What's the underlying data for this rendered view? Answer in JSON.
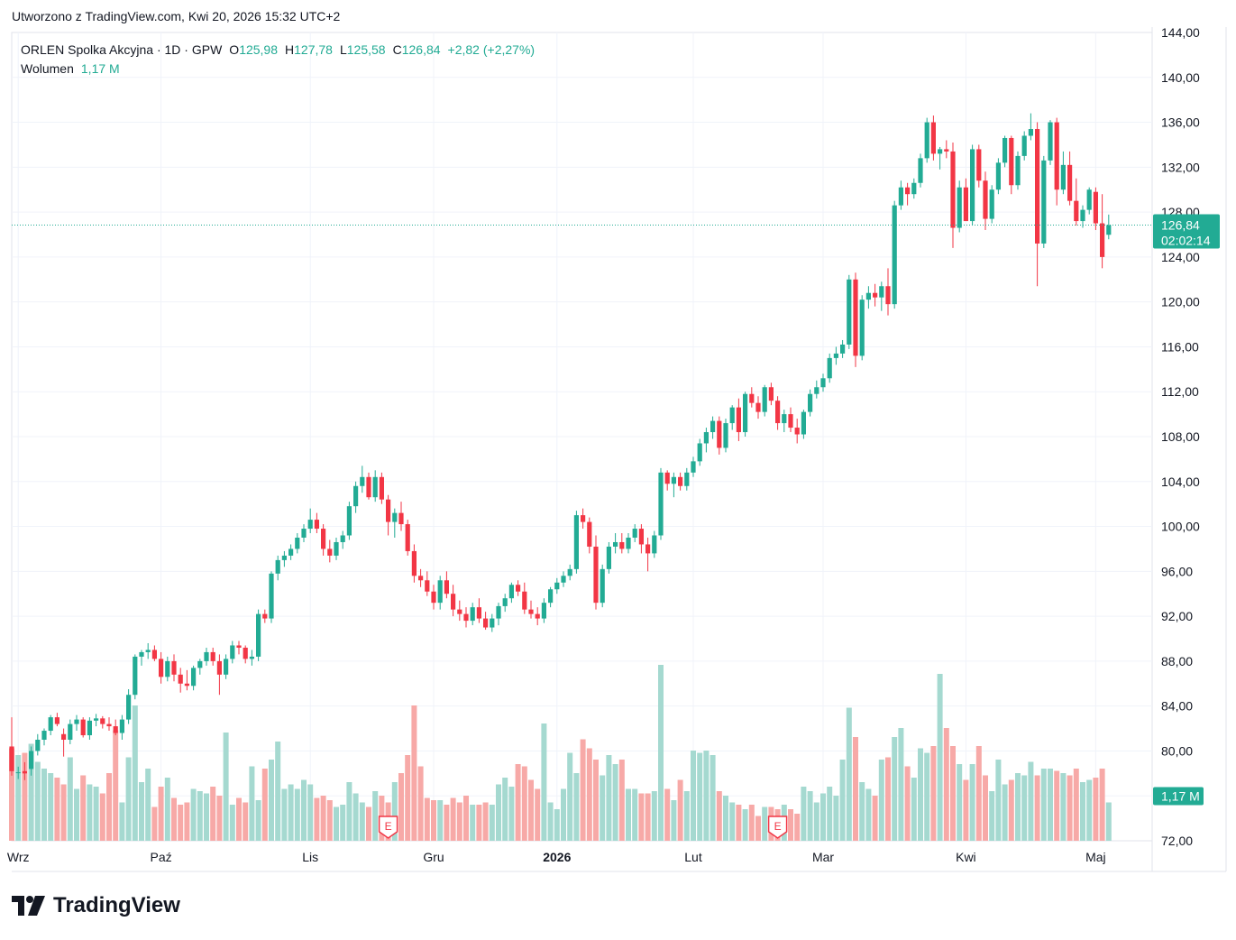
{
  "header": {
    "created_text": "Utworzono z TradingView.com, Kwi 20, 2026 15:32 UTC+2"
  },
  "legend": {
    "symbol": "ORLEN Spolka Akcyjna · 1D · GPW",
    "open_label": "O",
    "open": "125,98",
    "high_label": "H",
    "high": "127,78",
    "low_label": "L",
    "low": "125,58",
    "close_label": "C",
    "close": "126,84",
    "change": "+2,82 (+2,27%)",
    "volume_label": "Wolumen",
    "volume": "1,17 M"
  },
  "price_tag": {
    "price": "126,84",
    "countdown": "02:02:14"
  },
  "volume_tag": "1,17 M",
  "earnings_marker": "E",
  "brand": "TradingView",
  "colors": {
    "up": "#22ab94",
    "down": "#f23645",
    "up_vol": "#a5d9d0",
    "down_vol": "#f7a9a7",
    "grid": "#f0f3fa",
    "axis_text": "#131722"
  },
  "chart_data": {
    "type": "candlestick",
    "ylim": [
      72,
      144
    ],
    "y_ticks": [
      "144,00",
      "140,00",
      "136,00",
      "132,00",
      "128,00",
      "124,00",
      "120,00",
      "116,00",
      "112,00",
      "108,00",
      "104,00",
      "100,00",
      "96,00",
      "92,00",
      "88,00",
      "84,00",
      "80,00",
      "76,00",
      "72,00"
    ],
    "x_ticks": [
      {
        "label": "Wrz",
        "index": 1
      },
      {
        "label": "Paź",
        "index": 23
      },
      {
        "label": "Lis",
        "index": 46
      },
      {
        "label": "Gru",
        "index": 65
      },
      {
        "label": "2026",
        "index": 84,
        "bold": true
      },
      {
        "label": "Lut",
        "index": 105
      },
      {
        "label": "Mar",
        "index": 125
      },
      {
        "label": "Kwi",
        "index": 147
      },
      {
        "label": "Maj",
        "index": 167
      }
    ],
    "earnings_indices": [
      58,
      118
    ],
    "last_price": 126.84,
    "candles": [
      [
        80.4,
        83.0,
        77.8,
        78.2,
        0.41
      ],
      [
        78.1,
        78.6,
        77.5,
        78.1,
        0.38
      ],
      [
        78.2,
        79.0,
        77.4,
        78.0,
        0.39
      ],
      [
        78.4,
        80.4,
        77.8,
        80.0,
        0.43
      ],
      [
        80.0,
        81.5,
        79.6,
        81.0,
        0.35
      ],
      [
        81.0,
        82.0,
        80.5,
        81.8,
        0.32
      ],
      [
        81.8,
        83.2,
        81.4,
        83.0,
        0.3
      ],
      [
        83.0,
        83.4,
        82.2,
        82.4,
        0.28
      ],
      [
        81.5,
        82.0,
        79.5,
        81.0,
        0.25
      ],
      [
        81.0,
        82.8,
        80.6,
        82.4,
        0.37
      ],
      [
        82.4,
        83.2,
        81.8,
        82.8,
        0.23
      ],
      [
        82.8,
        83.0,
        81.2,
        81.4,
        0.29
      ],
      [
        81.4,
        83.0,
        81.0,
        82.7,
        0.25
      ],
      [
        82.7,
        83.3,
        82.2,
        82.9,
        0.24
      ],
      [
        82.9,
        83.1,
        82.0,
        82.4,
        0.21
      ],
      [
        82.4,
        83.0,
        81.8,
        82.2,
        0.3
      ],
      [
        82.2,
        82.8,
        81.4,
        81.6,
        0.49
      ],
      [
        81.6,
        83.2,
        81.0,
        82.8,
        0.17
      ],
      [
        82.8,
        85.5,
        82.4,
        85.0,
        0.37
      ],
      [
        85.0,
        88.6,
        84.6,
        88.4,
        0.6
      ],
      [
        88.4,
        89.0,
        87.6,
        88.8,
        0.26
      ],
      [
        88.8,
        89.6,
        88.2,
        89.0,
        0.32
      ],
      [
        89.0,
        89.4,
        88.0,
        88.2,
        0.15
      ],
      [
        88.2,
        88.8,
        86.0,
        86.6,
        0.24
      ],
      [
        86.6,
        88.4,
        86.2,
        88.0,
        0.28
      ],
      [
        88.0,
        88.6,
        86.2,
        86.8,
        0.19
      ],
      [
        86.8,
        87.4,
        85.2,
        86.0,
        0.16
      ],
      [
        86.0,
        87.2,
        85.4,
        85.8,
        0.17
      ],
      [
        85.8,
        87.6,
        85.4,
        87.4,
        0.23
      ],
      [
        87.4,
        88.2,
        86.8,
        88.0,
        0.22
      ],
      [
        88.0,
        89.2,
        87.6,
        88.8,
        0.21
      ],
      [
        88.8,
        89.2,
        87.6,
        88.0,
        0.24
      ],
      [
        88.0,
        88.6,
        85.0,
        86.8,
        0.2
      ],
      [
        86.8,
        88.6,
        86.4,
        88.2,
        0.48
      ],
      [
        88.2,
        89.8,
        87.8,
        89.4,
        0.16
      ],
      [
        89.4,
        89.8,
        88.6,
        89.2,
        0.19
      ],
      [
        89.2,
        89.4,
        87.8,
        88.2,
        0.17
      ],
      [
        88.2,
        89.0,
        87.6,
        88.4,
        0.33
      ],
      [
        88.4,
        92.6,
        88.0,
        92.2,
        0.18
      ],
      [
        92.2,
        92.6,
        91.4,
        91.8,
        0.32
      ],
      [
        91.8,
        96.0,
        91.4,
        95.8,
        0.36
      ],
      [
        95.8,
        97.4,
        95.2,
        97.0,
        0.44
      ],
      [
        97.0,
        97.8,
        96.4,
        97.4,
        0.23
      ],
      [
        97.4,
        98.4,
        97.0,
        98.0,
        0.25
      ],
      [
        98.0,
        99.4,
        97.6,
        99.0,
        0.23
      ],
      [
        99.0,
        100.2,
        98.6,
        99.8,
        0.27
      ],
      [
        99.8,
        101.6,
        99.4,
        100.6,
        0.25
      ],
      [
        100.6,
        101.2,
        99.4,
        99.8,
        0.19
      ],
      [
        99.8,
        100.2,
        97.4,
        98.0,
        0.2
      ],
      [
        98.0,
        98.8,
        96.8,
        97.4,
        0.18
      ],
      [
        97.4,
        99.0,
        97.0,
        98.6,
        0.15
      ],
      [
        98.6,
        99.6,
        98.0,
        99.2,
        0.16
      ],
      [
        99.2,
        102.2,
        98.8,
        101.8,
        0.26
      ],
      [
        101.8,
        104.0,
        101.2,
        103.6,
        0.21
      ],
      [
        103.6,
        105.4,
        103.0,
        104.4,
        0.17
      ],
      [
        104.4,
        104.8,
        102.4,
        102.6,
        0.15
      ],
      [
        102.6,
        105.0,
        102.2,
        104.4,
        0.22
      ],
      [
        104.4,
        104.8,
        102.0,
        102.4,
        0.2
      ],
      [
        102.4,
        102.8,
        99.2,
        100.4,
        0.17
      ],
      [
        100.4,
        101.6,
        99.0,
        101.2,
        0.26
      ],
      [
        101.2,
        102.2,
        99.6,
        100.2,
        0.3
      ],
      [
        100.2,
        100.6,
        97.4,
        97.8,
        0.38
      ],
      [
        97.8,
        98.4,
        95.0,
        95.6,
        0.6
      ],
      [
        95.6,
        96.2,
        94.6,
        95.2,
        0.33
      ],
      [
        95.2,
        96.0,
        93.8,
        94.2,
        0.19
      ],
      [
        94.2,
        94.8,
        92.6,
        93.2,
        0.18
      ],
      [
        93.2,
        95.6,
        92.6,
        95.2,
        0.18
      ],
      [
        95.2,
        96.0,
        93.6,
        94.0,
        0.16
      ],
      [
        94.0,
        94.8,
        92.0,
        92.6,
        0.19
      ],
      [
        92.6,
        93.4,
        91.6,
        92.2,
        0.17
      ],
      [
        92.2,
        92.8,
        91.0,
        91.6,
        0.2
      ],
      [
        91.6,
        93.2,
        91.2,
        92.8,
        0.16
      ],
      [
        92.8,
        93.6,
        91.4,
        91.8,
        0.16
      ],
      [
        91.8,
        92.4,
        90.8,
        91.0,
        0.17
      ],
      [
        91.0,
        92.2,
        90.6,
        91.8,
        0.16
      ],
      [
        91.8,
        93.2,
        91.2,
        92.9,
        0.25
      ],
      [
        92.9,
        94.0,
        92.4,
        93.6,
        0.28
      ],
      [
        93.6,
        95.0,
        93.2,
        94.8,
        0.24
      ],
      [
        94.8,
        95.2,
        93.8,
        94.2,
        0.34
      ],
      [
        94.2,
        95.0,
        92.2,
        92.6,
        0.33
      ],
      [
        92.6,
        93.4,
        91.8,
        92.2,
        0.27
      ],
      [
        92.2,
        92.8,
        91.2,
        91.8,
        0.23
      ],
      [
        91.8,
        93.6,
        91.4,
        93.2,
        0.52
      ],
      [
        93.2,
        94.6,
        92.8,
        94.4,
        0.17
      ],
      [
        94.4,
        95.4,
        94.0,
        95.0,
        0.14
      ],
      [
        95.0,
        96.0,
        94.6,
        95.6,
        0.23
      ],
      [
        95.6,
        96.6,
        95.2,
        96.2,
        0.39
      ],
      [
        96.2,
        101.4,
        95.8,
        101.0,
        0.3
      ],
      [
        101.0,
        101.6,
        99.8,
        100.4,
        0.45
      ],
      [
        100.4,
        100.8,
        97.6,
        98.2,
        0.41
      ],
      [
        98.2,
        99.2,
        92.6,
        93.2,
        0.36
      ],
      [
        93.2,
        96.6,
        92.8,
        96.2,
        0.29
      ],
      [
        96.2,
        98.6,
        95.8,
        98.2,
        0.38
      ],
      [
        98.2,
        99.4,
        97.6,
        98.6,
        0.34
      ],
      [
        98.6,
        99.4,
        97.6,
        98.0,
        0.36
      ],
      [
        98.0,
        99.4,
        97.6,
        99.0,
        0.23
      ],
      [
        99.0,
        100.2,
        98.6,
        99.8,
        0.23
      ],
      [
        99.8,
        100.2,
        97.6,
        98.4,
        0.21
      ],
      [
        98.4,
        99.0,
        96.0,
        97.6,
        0.21
      ],
      [
        97.6,
        99.6,
        97.2,
        99.2,
        0.22
      ],
      [
        99.2,
        105.2,
        98.8,
        104.8,
        0.78
      ],
      [
        104.8,
        105.0,
        103.2,
        103.8,
        0.23
      ],
      [
        103.8,
        104.8,
        102.6,
        104.4,
        0.18
      ],
      [
        104.4,
        104.8,
        103.2,
        103.6,
        0.27
      ],
      [
        103.6,
        105.2,
        103.2,
        104.8,
        0.22
      ],
      [
        104.8,
        106.2,
        104.4,
        105.8,
        0.4
      ],
      [
        105.8,
        107.8,
        105.4,
        107.4,
        0.39
      ],
      [
        107.4,
        108.8,
        106.6,
        108.4,
        0.4
      ],
      [
        108.4,
        109.8,
        107.8,
        109.4,
        0.38
      ],
      [
        109.4,
        109.8,
        106.4,
        107.0,
        0.22
      ],
      [
        107.0,
        109.6,
        106.6,
        109.2,
        0.2
      ],
      [
        109.2,
        110.8,
        108.6,
        110.6,
        0.17
      ],
      [
        110.6,
        111.4,
        107.6,
        108.4,
        0.16
      ],
      [
        108.4,
        112.0,
        108.0,
        111.8,
        0.14
      ],
      [
        111.8,
        112.4,
        110.6,
        111.0,
        0.16
      ],
      [
        111.0,
        111.6,
        109.6,
        110.2,
        0.11
      ],
      [
        110.2,
        112.6,
        109.8,
        112.4,
        0.15
      ],
      [
        112.4,
        112.8,
        110.8,
        111.2,
        0.15
      ],
      [
        111.2,
        111.6,
        108.6,
        109.2,
        0.14
      ],
      [
        109.2,
        110.4,
        108.4,
        110.0,
        0.16
      ],
      [
        110.0,
        110.6,
        108.4,
        108.8,
        0.14
      ],
      [
        108.8,
        109.6,
        107.4,
        108.2,
        0.12
      ],
      [
        108.2,
        110.4,
        107.8,
        110.2,
        0.24
      ],
      [
        110.2,
        112.2,
        109.8,
        111.8,
        0.22
      ],
      [
        111.8,
        113.0,
        111.4,
        112.4,
        0.17
      ],
      [
        112.4,
        113.6,
        112.0,
        113.2,
        0.21
      ],
      [
        113.2,
        115.4,
        112.8,
        115.0,
        0.24
      ],
      [
        115.0,
        116.0,
        114.4,
        115.4,
        0.2
      ],
      [
        115.4,
        116.6,
        115.0,
        116.2,
        0.36
      ],
      [
        116.2,
        122.4,
        115.8,
        122.0,
        0.59
      ],
      [
        122.0,
        122.6,
        114.2,
        115.2,
        0.46
      ],
      [
        115.2,
        120.6,
        114.8,
        120.2,
        0.26
      ],
      [
        120.2,
        121.4,
        119.4,
        120.8,
        0.23
      ],
      [
        120.8,
        121.6,
        119.6,
        120.4,
        0.2
      ],
      [
        120.4,
        121.8,
        119.2,
        121.4,
        0.36
      ],
      [
        121.4,
        123.0,
        118.8,
        119.8,
        0.37
      ],
      [
        119.8,
        129.0,
        119.4,
        128.6,
        0.46
      ],
      [
        128.6,
        130.8,
        128.2,
        130.2,
        0.5
      ],
      [
        130.2,
        130.6,
        128.6,
        129.6,
        0.33
      ],
      [
        129.6,
        131.0,
        129.2,
        130.6,
        0.28
      ],
      [
        130.6,
        133.2,
        130.2,
        132.8,
        0.41
      ],
      [
        132.8,
        136.4,
        132.4,
        136.0,
        0.39
      ],
      [
        136.0,
        136.6,
        132.6,
        133.2,
        0.42
      ],
      [
        133.2,
        133.8,
        131.8,
        133.6,
        0.74
      ],
      [
        133.6,
        134.4,
        132.8,
        133.4,
        0.5
      ],
      [
        133.4,
        134.2,
        124.8,
        126.6,
        0.42
      ],
      [
        126.6,
        130.8,
        126.2,
        130.2,
        0.34
      ],
      [
        130.2,
        131.0,
        127.6,
        127.2,
        0.27
      ],
      [
        127.2,
        134.0,
        126.8,
        133.6,
        0.34
      ],
      [
        133.6,
        134.0,
        130.2,
        130.8,
        0.42
      ],
      [
        130.8,
        131.6,
        126.4,
        127.4,
        0.29
      ],
      [
        127.4,
        130.4,
        127.0,
        130.0,
        0.22
      ],
      [
        130.0,
        132.8,
        129.6,
        132.4,
        0.36
      ],
      [
        132.4,
        134.8,
        132.0,
        134.6,
        0.25
      ],
      [
        134.6,
        134.8,
        129.6,
        130.4,
        0.27
      ],
      [
        130.4,
        133.4,
        130.0,
        133.0,
        0.3
      ],
      [
        133.0,
        135.2,
        132.6,
        134.8,
        0.29
      ],
      [
        134.8,
        136.8,
        134.4,
        135.4,
        0.35
      ],
      [
        135.4,
        136.0,
        121.4,
        125.2,
        0.29
      ],
      [
        125.2,
        133.0,
        124.8,
        132.6,
        0.32
      ],
      [
        132.6,
        136.2,
        132.2,
        136.0,
        0.32
      ],
      [
        136.0,
        136.4,
        128.6,
        130.0,
        0.31
      ],
      [
        130.0,
        133.4,
        129.6,
        132.2,
        0.3
      ],
      [
        132.2,
        133.4,
        128.6,
        129.0,
        0.29
      ],
      [
        129.0,
        131.0,
        126.8,
        127.2,
        0.32
      ],
      [
        127.2,
        128.6,
        126.6,
        128.2,
        0.26
      ],
      [
        128.2,
        130.2,
        127.8,
        130.0,
        0.27
      ],
      [
        129.8,
        130.2,
        126.4,
        127.0,
        0.28
      ],
      [
        127.0,
        129.6,
        123.0,
        124.0,
        0.32
      ],
      [
        125.98,
        127.78,
        125.58,
        126.84,
        0.17
      ]
    ]
  }
}
